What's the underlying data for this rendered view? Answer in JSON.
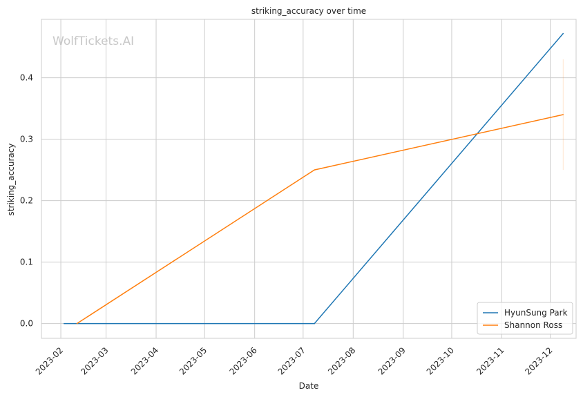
{
  "chart_data": {
    "type": "line",
    "title": "striking_accuracy over time",
    "xlabel": "Date",
    "ylabel": "striking_accuracy",
    "watermark": "WolfTickets.AI",
    "x_ticks": [
      "2023-02",
      "2023-03",
      "2023-04",
      "2023-05",
      "2023-06",
      "2023-07",
      "2023-08",
      "2023-09",
      "2023-10",
      "2023-11",
      "2023-12"
    ],
    "y_ticks": [
      "0.0",
      "0.1",
      "0.2",
      "0.3",
      "0.4"
    ],
    "xlim": [
      "2023-01-20",
      "2023-12-17"
    ],
    "ylim": [
      -0.024,
      0.495
    ],
    "grid": true,
    "legend_position": "lower-right",
    "series": [
      {
        "name": "HyunSung Park",
        "color": "#1f77b4",
        "points": [
          {
            "x": "2023-02-03",
            "y": 0.0
          },
          {
            "x": "2023-07-08",
            "y": 0.0
          },
          {
            "x": "2023-12-09",
            "y": 0.472
          }
        ]
      },
      {
        "name": "Shannon Ross",
        "color": "#ff7f0e",
        "points": [
          {
            "x": "2023-02-11",
            "y": 0.0
          },
          {
            "x": "2023-07-08",
            "y": 0.25
          },
          {
            "x": "2023-12-09",
            "y": 0.34
          }
        ],
        "error_bars": [
          {
            "x": "2023-12-09",
            "low": 0.25,
            "high": 0.43
          }
        ]
      }
    ]
  }
}
